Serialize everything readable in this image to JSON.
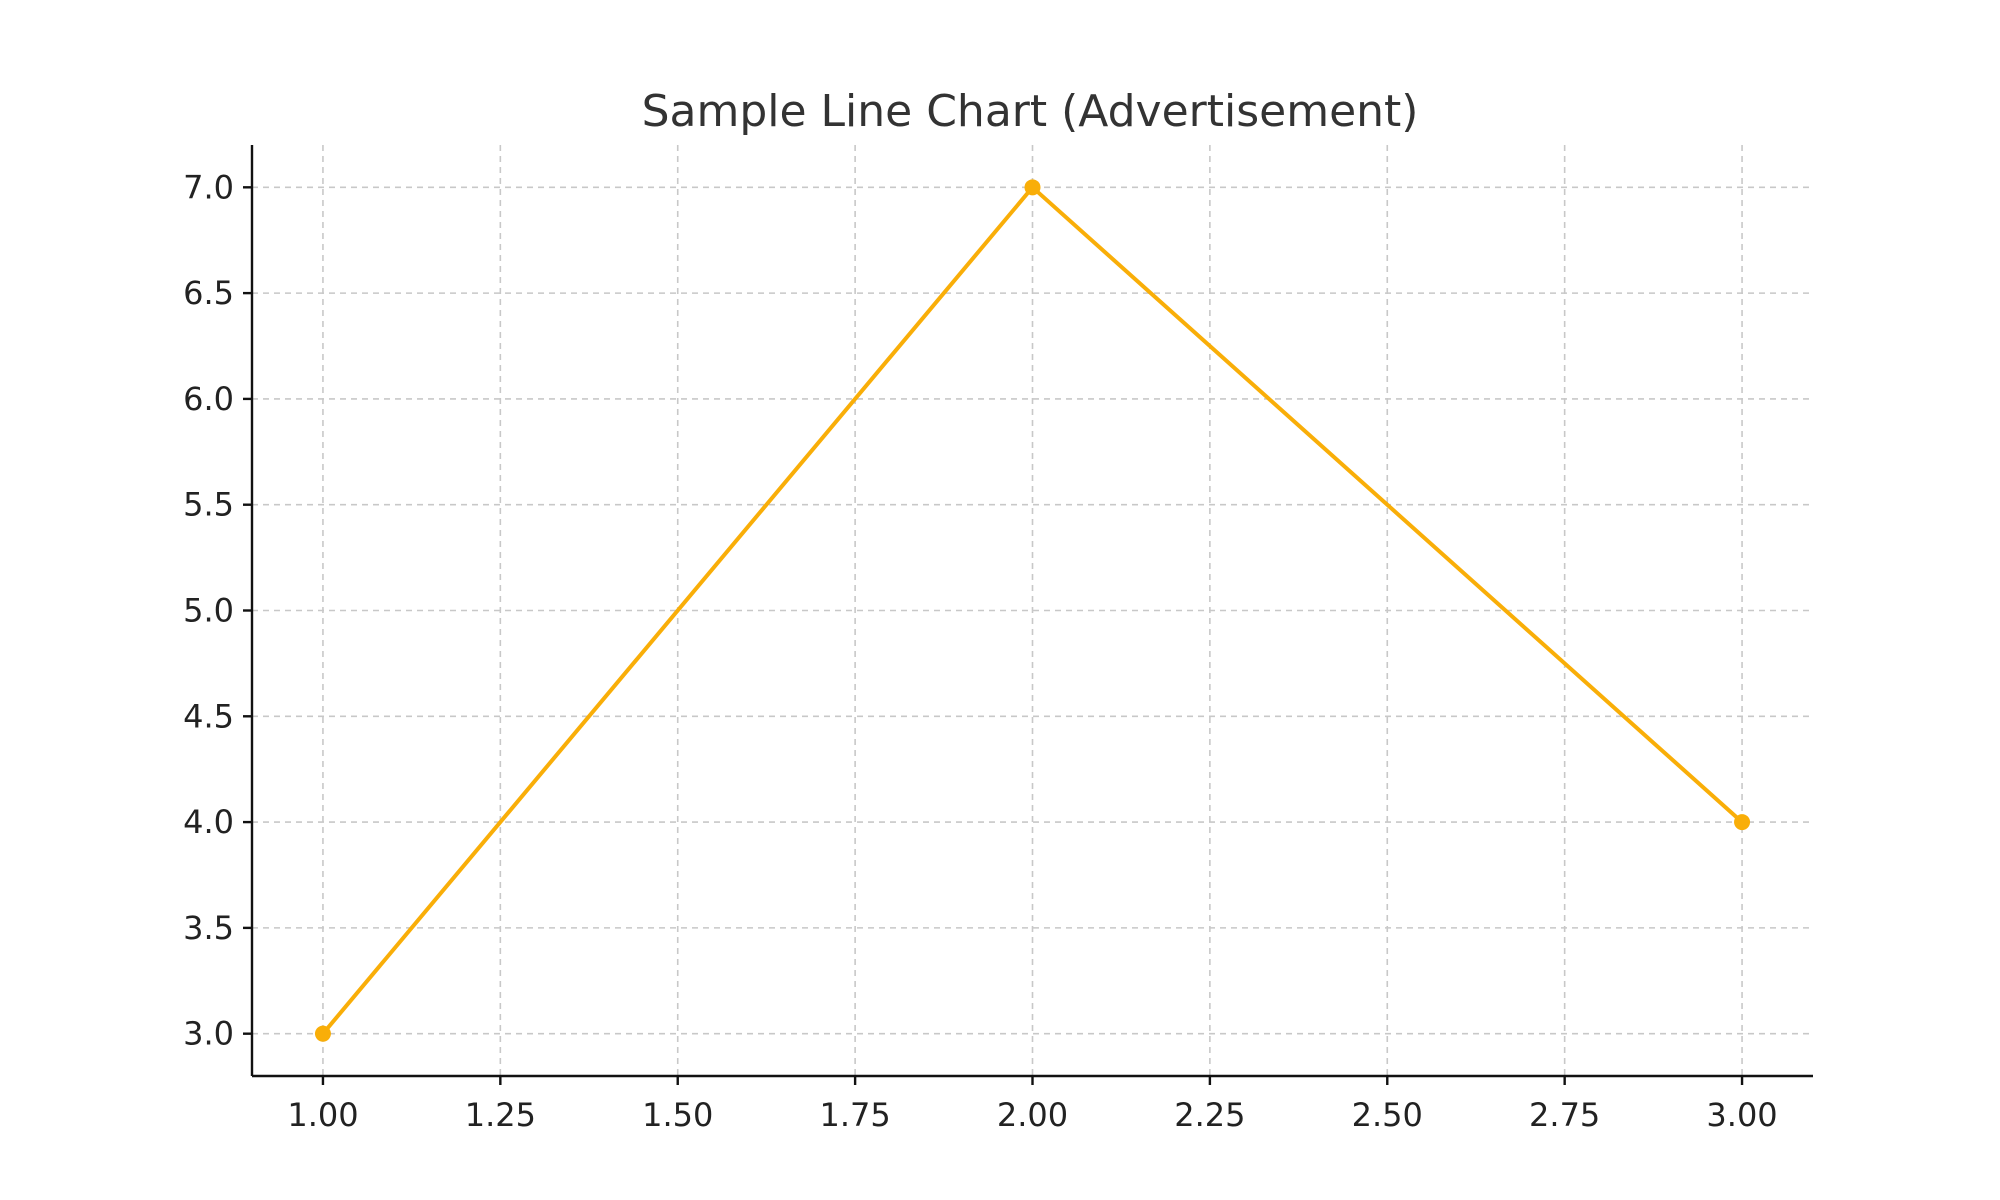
{
  "chart_data": {
    "type": "line",
    "title": "Sample Line Chart (Advertisement)",
    "xlabel": "",
    "ylabel": "",
    "x": [
      1.0,
      2.0,
      3.0
    ],
    "series": [
      {
        "values": [
          3.0,
          7.0,
          4.0
        ],
        "color": "#F9AE08",
        "marker": "circle"
      }
    ],
    "xlim": [
      0.9,
      3.1
    ],
    "ylim": [
      2.8,
      7.2
    ],
    "x_ticks": [
      1.0,
      1.25,
      1.5,
      1.75,
      2.0,
      2.25,
      2.5,
      2.75,
      3.0
    ],
    "x_tick_labels": [
      "1.00",
      "1.25",
      "1.50",
      "1.75",
      "2.00",
      "2.25",
      "2.50",
      "2.75",
      "3.00"
    ],
    "y_ticks": [
      3.0,
      3.5,
      4.0,
      4.5,
      5.0,
      5.5,
      6.0,
      6.5,
      7.0
    ],
    "y_tick_labels": [
      "3.0",
      "3.5",
      "4.0",
      "4.5",
      "5.0",
      "5.5",
      "6.0",
      "6.5",
      "7.0"
    ],
    "grid": true,
    "legend": "none"
  }
}
